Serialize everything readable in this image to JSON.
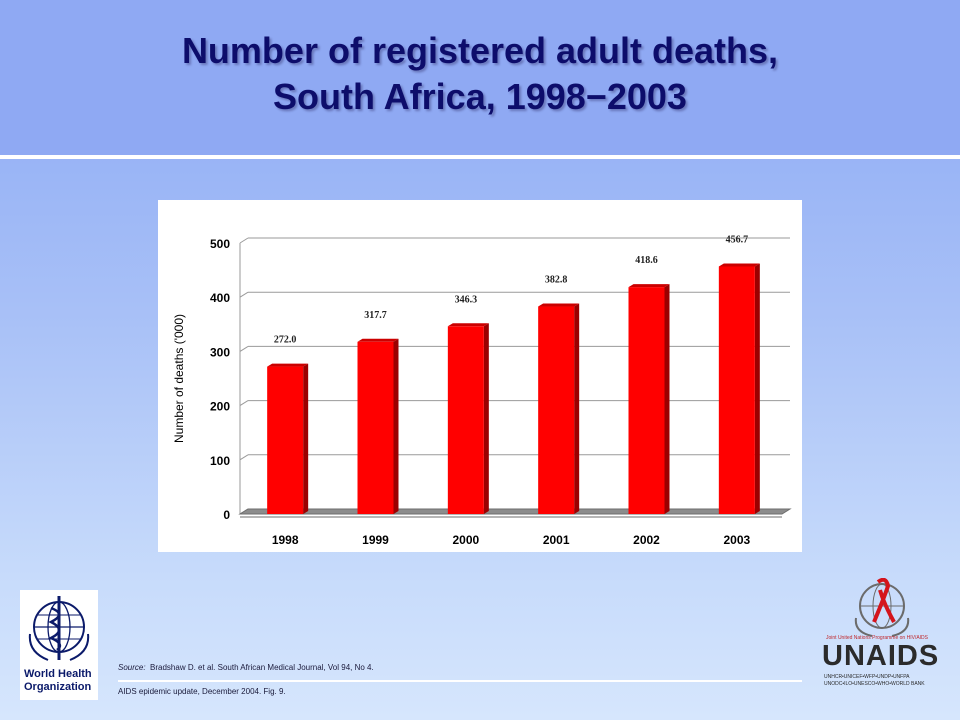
{
  "slide": {
    "title_line1": "Number of registered adult deaths,",
    "title_line2": "South Africa, 1998−2003",
    "source_label": "Source:",
    "source_text": "Bradshaw D. et al.  South African Medical Journal, Vol 94, No 4.",
    "footnote": "AIDS epidemic update, December 2004.  Fig. 9."
  },
  "logos": {
    "who_name_line1": "World Health",
    "who_name_line2": "Organization",
    "unaids_tagline": "Joint United Nations Programme on HIV/AIDS",
    "unaids_name": "UNAIDS",
    "unaids_orgs_line1": "UNHCR•UNICEF•WFP•UNDP•UNFPA",
    "unaids_orgs_line2": "UNODC•ILO•UNESCO•WHO•WORLD BANK"
  },
  "colors": {
    "bar": "#ff0000",
    "bar_side": "#9b0000",
    "bar_top": "#cc0000",
    "title": "#0d0d6b"
  },
  "chart_data": {
    "type": "bar",
    "categories": [
      "1998",
      "1999",
      "2000",
      "2001",
      "2002",
      "2003"
    ],
    "values": [
      272.0,
      317.7,
      346.3,
      382.8,
      418.6,
      456.7
    ],
    "data_labels": [
      "272.0",
      "317.7",
      "346.3",
      "382.8",
      "418.6",
      "456.7"
    ],
    "title": "",
    "xlabel": "",
    "ylabel": "Number of deaths ('000)",
    "ylim": [
      0,
      500
    ],
    "yticks": [
      0,
      100,
      200,
      300,
      400,
      500
    ],
    "grid": true,
    "legend": "none",
    "style": "3d"
  }
}
